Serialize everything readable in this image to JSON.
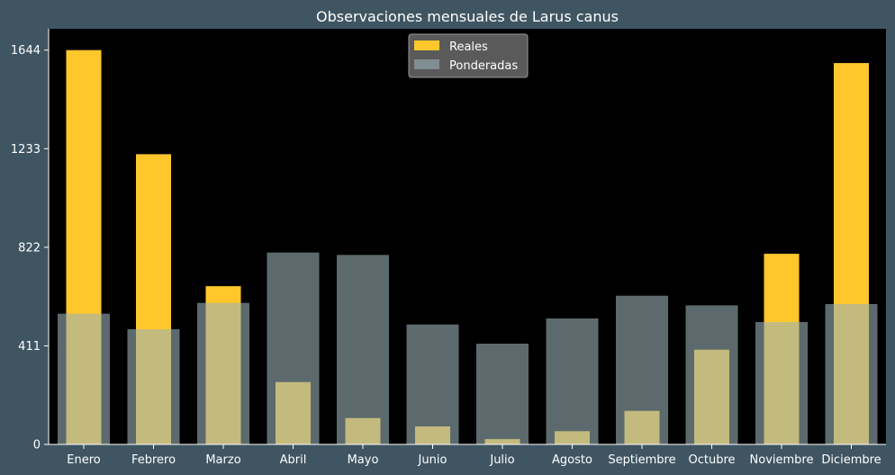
{
  "chart_data": {
    "type": "bar",
    "title": "Observaciones mensuales de Larus canus",
    "xlabel": "",
    "ylabel": "",
    "categories": [
      "Enero",
      "Febrero",
      "Marzo",
      "Abril",
      "Mayo",
      "Junio",
      "Julio",
      "Agosto",
      "Septiembre",
      "Octubre",
      "Noviembre",
      "Diciembre"
    ],
    "yticks": [
      0,
      411,
      822,
      1233,
      1644
    ],
    "ylim": [
      0,
      1733
    ],
    "legend_position": "top-center",
    "series": [
      {
        "name": "Reales",
        "color": "#ffc72c",
        "values": [
          1644,
          1210,
          660,
          260,
          110,
          75,
          22,
          55,
          140,
          395,
          795,
          1590
        ]
      },
      {
        "name": "Ponderadas",
        "color": "#9bb0b5",
        "values": [
          545,
          480,
          590,
          800,
          790,
          500,
          420,
          525,
          620,
          580,
          510,
          585
        ]
      }
    ]
  }
}
